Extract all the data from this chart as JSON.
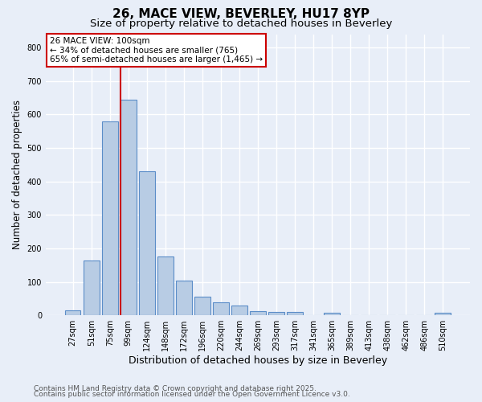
{
  "title1": "26, MACE VIEW, BEVERLEY, HU17 8YP",
  "title2": "Size of property relative to detached houses in Beverley",
  "categories": [
    "27sqm",
    "51sqm",
    "75sqm",
    "99sqm",
    "124sqm",
    "148sqm",
    "172sqm",
    "196sqm",
    "220sqm",
    "244sqm",
    "269sqm",
    "293sqm",
    "317sqm",
    "341sqm",
    "365sqm",
    "389sqm",
    "413sqm",
    "438sqm",
    "462sqm",
    "486sqm",
    "510sqm"
  ],
  "values": [
    15,
    165,
    580,
    645,
    430,
    175,
    103,
    55,
    40,
    30,
    13,
    10,
    10,
    0,
    8,
    0,
    0,
    0,
    0,
    0,
    7
  ],
  "bar_color": "#b8cce4",
  "bar_edge_color": "#5b8dc8",
  "background_color": "#e8eef8",
  "grid_color": "#ffffff",
  "ylabel": "Number of detached properties",
  "xlabel": "Distribution of detached houses by size in Beverley",
  "ylim": [
    0,
    840
  ],
  "yticks": [
    0,
    100,
    200,
    300,
    400,
    500,
    600,
    700,
    800
  ],
  "vline_bar_index": 3,
  "vline_color": "#cc0000",
  "annotation_text": "26 MACE VIEW: 100sqm\n← 34% of detached houses are smaller (765)\n65% of semi-detached houses are larger (1,465) →",
  "annotation_box_color": "#ffffff",
  "annotation_box_edge": "#cc0000",
  "footer1": "Contains HM Land Registry data © Crown copyright and database right 2025.",
  "footer2": "Contains public sector information licensed under the Open Government Licence v3.0.",
  "title1_fontsize": 11,
  "title2_fontsize": 9.5,
  "tick_fontsize": 7,
  "ylabel_fontsize": 8.5,
  "xlabel_fontsize": 9,
  "footer_fontsize": 6.5,
  "annotation_fontsize": 7.5
}
